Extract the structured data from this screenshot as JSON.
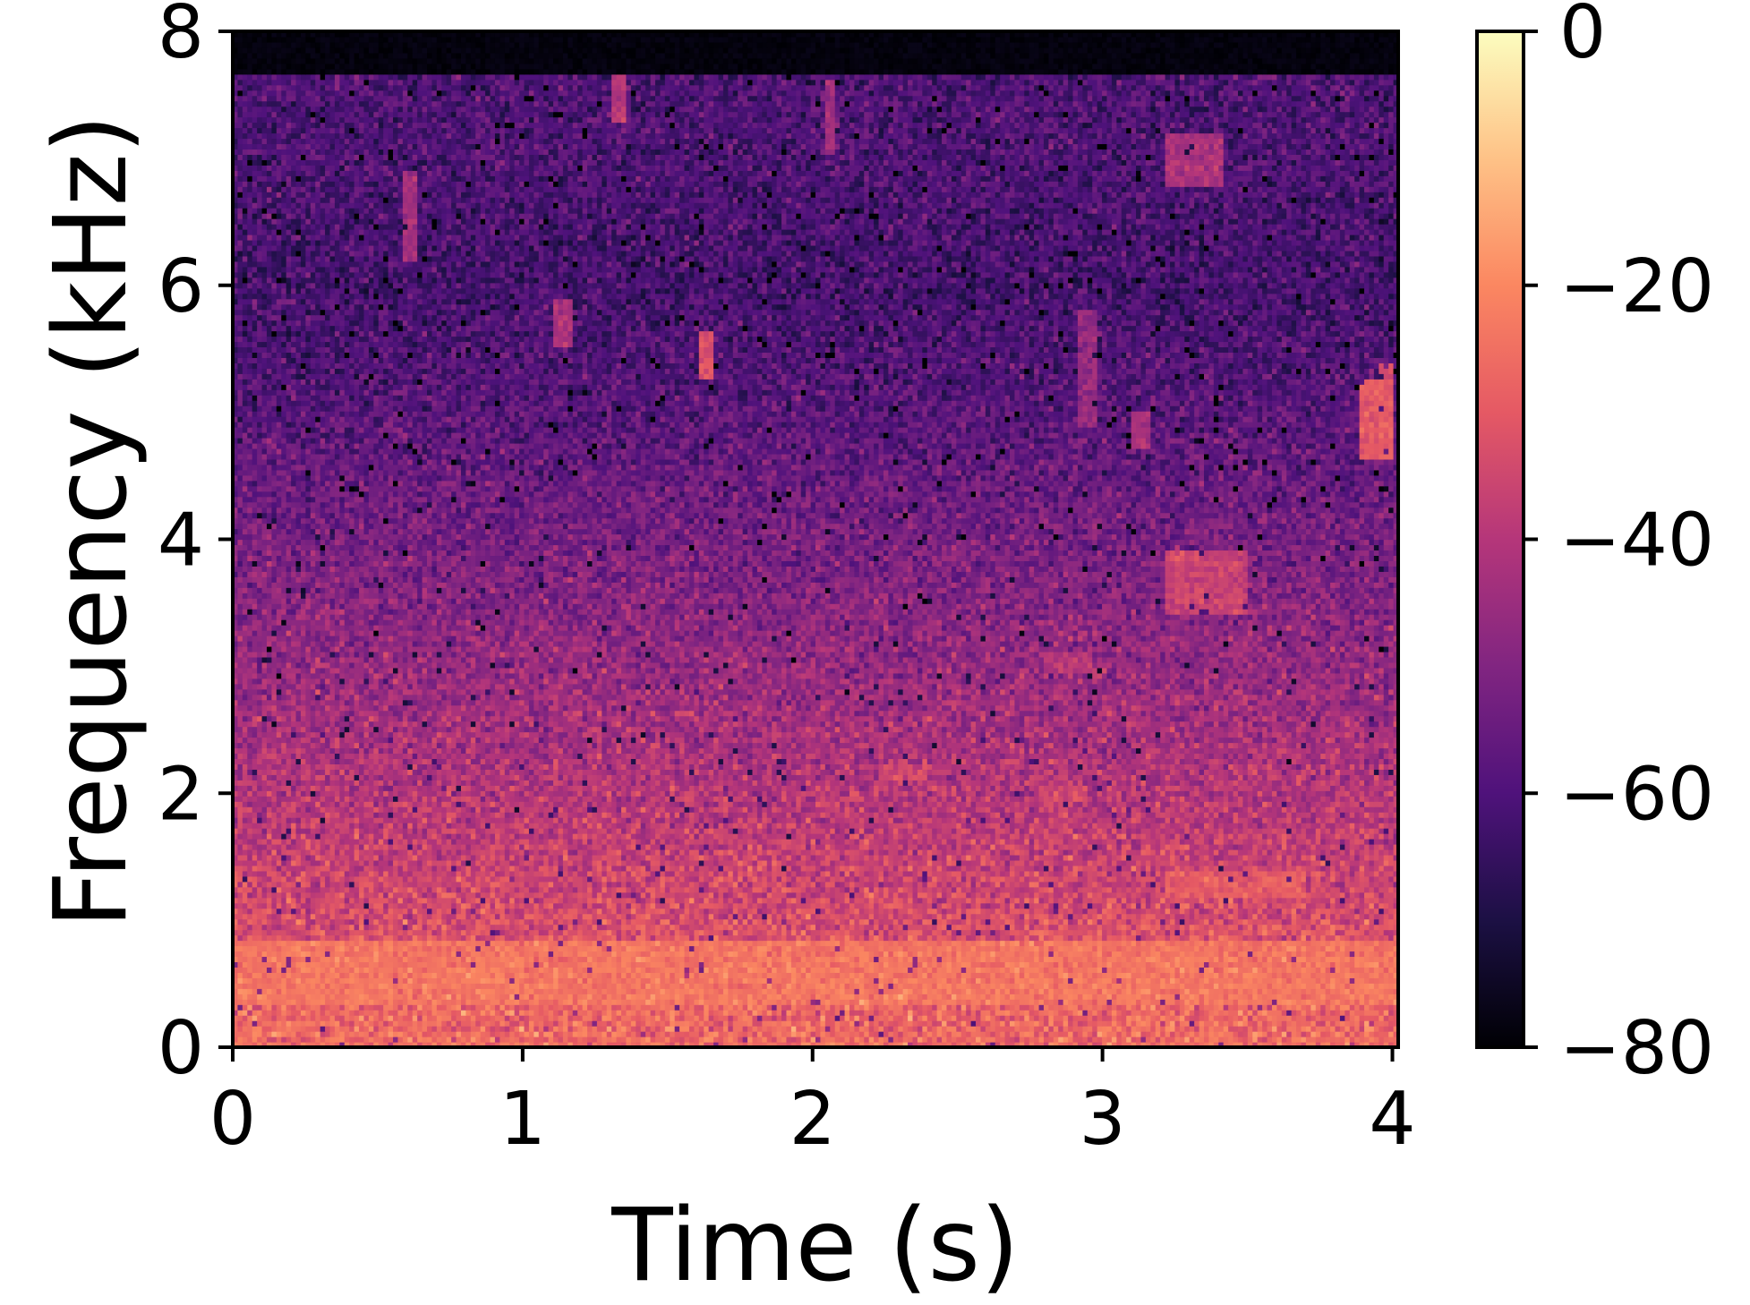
{
  "chart_data": {
    "type": "heatmap",
    "subtype": "spectrogram",
    "title": "",
    "xlabel": "Time (s)",
    "ylabel": "Frequency (kHz)",
    "xlim": [
      0,
      4.02
    ],
    "ylim": [
      0,
      8
    ],
    "x_ticks": [
      0,
      1,
      2,
      3,
      4
    ],
    "x_tick_labels": [
      "0",
      "1",
      "2",
      "3",
      "4"
    ],
    "y_ticks": [
      0,
      2,
      4,
      6,
      8
    ],
    "y_tick_labels": [
      "0",
      "2",
      "4",
      "6",
      "8"
    ],
    "colormap": "magma",
    "colormap_stops": [
      "#000004",
      "#1c1044",
      "#4f127b",
      "#812581",
      "#b5367a",
      "#e55964",
      "#fb8761",
      "#fec287",
      "#fcfdbf"
    ],
    "colorbar": {
      "label": "",
      "range": [
        -80,
        0
      ],
      "ticks": [
        0,
        -20,
        -40,
        -60,
        -80
      ],
      "tick_labels": [
        "0",
        "−20",
        "−40",
        "−60",
        "−80"
      ]
    },
    "grid": false,
    "silent_band_above_khz": 7.65,
    "level_profile_db": [
      {
        "frequency_khz": 0.0,
        "level_db": -26
      },
      {
        "frequency_khz": 0.5,
        "level_db": -28
      },
      {
        "frequency_khz": 1.0,
        "level_db": -33
      },
      {
        "frequency_khz": 2.0,
        "level_db": -40
      },
      {
        "frequency_khz": 3.0,
        "level_db": -46
      },
      {
        "frequency_khz": 4.0,
        "level_db": -52
      },
      {
        "frequency_khz": 5.0,
        "level_db": -58
      },
      {
        "frequency_khz": 6.0,
        "level_db": -62
      },
      {
        "frequency_khz": 7.0,
        "level_db": -60
      },
      {
        "frequency_khz": 7.6,
        "level_db": -60
      }
    ],
    "events": [
      {
        "t_start": 1.6,
        "t_end": 1.66,
        "f_low": 5.25,
        "f_high": 5.65,
        "level_db": -32
      },
      {
        "t_start": 1.3,
        "t_end": 1.36,
        "f_low": 7.3,
        "f_high": 7.7,
        "level_db": -40
      },
      {
        "t_start": 2.04,
        "t_end": 2.08,
        "f_low": 7.05,
        "f_high": 7.6,
        "level_db": -44
      },
      {
        "t_start": 3.22,
        "t_end": 3.42,
        "f_low": 6.8,
        "f_high": 7.2,
        "level_db": -42
      },
      {
        "t_start": 3.22,
        "t_end": 3.5,
        "f_low": 3.4,
        "f_high": 3.9,
        "level_db": -36
      },
      {
        "t_start": 3.88,
        "t_end": 4.0,
        "f_low": 4.65,
        "f_high": 5.25,
        "level_db": -30
      },
      {
        "t_start": 3.95,
        "t_end": 4.0,
        "f_low": 5.0,
        "f_high": 5.4,
        "level_db": -34
      },
      {
        "t_start": 3.1,
        "t_end": 3.16,
        "f_low": 4.7,
        "f_high": 5.0,
        "level_db": -42
      },
      {
        "t_start": 2.92,
        "t_end": 2.98,
        "f_low": 4.9,
        "f_high": 5.8,
        "level_db": -46
      },
      {
        "t_start": 3.22,
        "t_end": 3.7,
        "f_low": 1.2,
        "f_high": 1.4,
        "level_db": -30
      },
      {
        "t_start": 2.22,
        "t_end": 2.4,
        "f_low": 2.1,
        "f_high": 2.25,
        "level_db": -34
      },
      {
        "t_start": 2.78,
        "t_end": 2.94,
        "f_low": 1.95,
        "f_high": 2.05,
        "level_db": -34
      },
      {
        "t_start": 2.8,
        "t_end": 2.96,
        "f_low": 2.95,
        "f_high": 3.1,
        "level_db": -40
      },
      {
        "t_start": 0.0,
        "t_end": 4.02,
        "f_low": 0.35,
        "f_high": 0.85,
        "level_db": -24
      },
      {
        "t_start": 0.58,
        "t_end": 0.64,
        "f_low": 6.2,
        "f_high": 6.9,
        "level_db": -44
      },
      {
        "t_start": 1.1,
        "t_end": 1.18,
        "f_low": 5.5,
        "f_high": 5.9,
        "level_db": -42
      }
    ]
  }
}
